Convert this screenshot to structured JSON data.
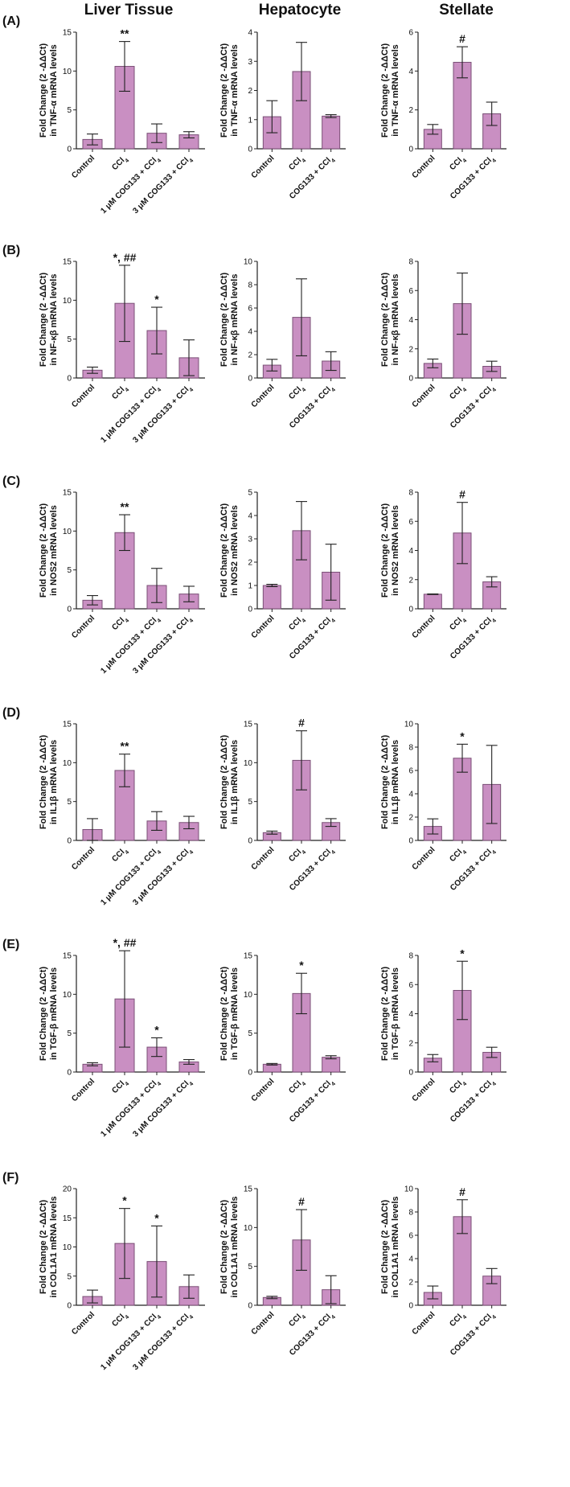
{
  "columns": [
    "Liver Tissue",
    "Hepatocyte",
    "Stellate"
  ],
  "rows": [
    "(A)",
    "(B)",
    "(C)",
    "(D)",
    "(E)",
    "(F)"
  ],
  "colors": {
    "bar": "#c98fc2",
    "bar_edge": "#7a4f76",
    "axis": "#222222"
  },
  "chart_data": [
    {
      "type": "bar",
      "row": 0,
      "col": 0,
      "ylabel": [
        "Fold Change (2 -ΔΔCt)",
        "in TNF-α mRNA levels"
      ],
      "ylim": [
        0,
        15
      ],
      "yticks": [
        0,
        5,
        10,
        15
      ],
      "categories": [
        "Control",
        "CCl4",
        "1 μM COG133 + CCl4",
        "3 μM COG133 + CCl4"
      ],
      "values": [
        1.2,
        10.6,
        2.0,
        1.8
      ],
      "errors": [
        0.7,
        3.2,
        1.2,
        0.4
      ],
      "annotations": [
        "",
        "**",
        "",
        ""
      ]
    },
    {
      "type": "bar",
      "row": 0,
      "col": 1,
      "ylabel": [
        "Fold Change (2 -ΔΔCt)",
        "in TNF-α mRNA levels"
      ],
      "ylim": [
        0,
        4
      ],
      "yticks": [
        0,
        1,
        2,
        3,
        4
      ],
      "categories": [
        "Control",
        "CCl4",
        "COG133 + CCl4"
      ],
      "values": [
        1.1,
        2.65,
        1.12
      ],
      "errors": [
        0.55,
        1.0,
        0.05
      ],
      "annotations": [
        "",
        "",
        ""
      ]
    },
    {
      "type": "bar",
      "row": 0,
      "col": 2,
      "ylabel": [
        "Fold Change (2 -ΔΔCt)",
        "in TNF-α mRNA levels"
      ],
      "ylim": [
        0,
        6
      ],
      "yticks": [
        0,
        2,
        4,
        6
      ],
      "categories": [
        "Control",
        "CCl4",
        "COG133 + CCl4"
      ],
      "values": [
        1.0,
        4.45,
        1.8
      ],
      "errors": [
        0.25,
        0.8,
        0.6
      ],
      "annotations": [
        "",
        "#",
        ""
      ]
    },
    {
      "type": "bar",
      "row": 1,
      "col": 0,
      "ylabel": [
        "Fold Change (2 -ΔΔCt)",
        "in NF-κβ mRNA levels"
      ],
      "ylim": [
        0,
        15
      ],
      "yticks": [
        0,
        5,
        10,
        15
      ],
      "categories": [
        "Control",
        "CCl4",
        "1 μM COG133 + CCl4",
        "3 μM COG133 + CCl4"
      ],
      "values": [
        1.0,
        9.6,
        6.1,
        2.6
      ],
      "errors": [
        0.4,
        4.9,
        3.0,
        2.3
      ],
      "annotations": [
        "",
        "*, ##",
        "*",
        ""
      ]
    },
    {
      "type": "bar",
      "row": 1,
      "col": 1,
      "ylabel": [
        "Fold Change (2 -ΔΔCt)",
        "in NF-κβ mRNA levels"
      ],
      "ylim": [
        0,
        10
      ],
      "yticks": [
        0,
        2,
        4,
        6,
        8,
        10
      ],
      "categories": [
        "Control",
        "CCl4",
        "COG133 + CCl4"
      ],
      "values": [
        1.1,
        5.2,
        1.45
      ],
      "errors": [
        0.5,
        3.3,
        0.8
      ],
      "annotations": [
        "",
        "",
        ""
      ]
    },
    {
      "type": "bar",
      "row": 1,
      "col": 2,
      "ylabel": [
        "Fold Change (2 -ΔΔCt)",
        "in NF-κβ mRNA levels"
      ],
      "ylim": [
        0,
        8
      ],
      "yticks": [
        0,
        2,
        4,
        6,
        8
      ],
      "categories": [
        "Control",
        "CCl4",
        "COG133 + CCl4"
      ],
      "values": [
        1.0,
        5.1,
        0.8
      ],
      "errors": [
        0.3,
        2.1,
        0.35
      ],
      "annotations": [
        "",
        "",
        ""
      ]
    },
    {
      "type": "bar",
      "row": 2,
      "col": 0,
      "ylabel": [
        "Fold Change (2 -ΔΔCt)",
        "in NOS2 mRNA levels"
      ],
      "ylim": [
        0,
        15
      ],
      "yticks": [
        0,
        5,
        10,
        15
      ],
      "categories": [
        "Control",
        "CCl4",
        "1 μM COG133 + CCl4",
        "3 μM COG133 + CCl4"
      ],
      "values": [
        1.1,
        9.8,
        3.0,
        1.9
      ],
      "errors": [
        0.6,
        2.3,
        2.2,
        1.0
      ],
      "annotations": [
        "",
        "**",
        "",
        ""
      ]
    },
    {
      "type": "bar",
      "row": 2,
      "col": 1,
      "ylabel": [
        "Fold Change (2 -ΔΔCt)",
        "in NOS2 mRNA levels"
      ],
      "ylim": [
        0,
        5
      ],
      "yticks": [
        0,
        1,
        2,
        3,
        4,
        5
      ],
      "categories": [
        "Control",
        "CCl4",
        "COG133 + CCl4"
      ],
      "values": [
        1.0,
        3.35,
        1.57
      ],
      "errors": [
        0.05,
        1.25,
        1.2
      ],
      "annotations": [
        "",
        "",
        ""
      ]
    },
    {
      "type": "bar",
      "row": 2,
      "col": 2,
      "ylabel": [
        "Fold Change (2 -ΔΔCt)",
        "in NOS2 mRNA levels"
      ],
      "ylim": [
        0,
        8
      ],
      "yticks": [
        0,
        2,
        4,
        6,
        8
      ],
      "categories": [
        "Control",
        "CCl4",
        "COG133 + CCl4"
      ],
      "values": [
        1.0,
        5.2,
        1.85
      ],
      "errors": [
        0.02,
        2.1,
        0.35
      ],
      "annotations": [
        "",
        "#",
        ""
      ]
    },
    {
      "type": "bar",
      "row": 3,
      "col": 0,
      "ylabel": [
        "Fold Change (2 -ΔΔCt)",
        "in IL1β mRNA levels"
      ],
      "ylim": [
        0,
        15
      ],
      "yticks": [
        0,
        5,
        10,
        15
      ],
      "categories": [
        "Control",
        "CCl4",
        "1 μM COG133 + CCl4",
        "3 μM COG133 + CCl4"
      ],
      "values": [
        1.4,
        9.0,
        2.5,
        2.3
      ],
      "errors": [
        1.4,
        2.1,
        1.2,
        0.8
      ],
      "annotations": [
        "",
        "**",
        "",
        ""
      ]
    },
    {
      "type": "bar",
      "row": 3,
      "col": 1,
      "ylabel": [
        "Fold Change (2 -ΔΔCt)",
        "in IL1β mRNA levels"
      ],
      "ylim": [
        0,
        15
      ],
      "yticks": [
        0,
        5,
        10,
        15
      ],
      "categories": [
        "Control",
        "CCl4",
        "COG133 + CCl4"
      ],
      "values": [
        1.0,
        10.3,
        2.3
      ],
      "errors": [
        0.2,
        3.8,
        0.5
      ],
      "annotations": [
        "",
        "#",
        ""
      ]
    },
    {
      "type": "bar",
      "row": 3,
      "col": 2,
      "ylabel": [
        "Fold Change (2 -ΔΔCt)",
        "in IL1β mRNA levels"
      ],
      "ylim": [
        0,
        10
      ],
      "yticks": [
        0,
        2,
        4,
        6,
        8,
        10
      ],
      "categories": [
        "Control",
        "CCl4",
        "COG133 + CCl4"
      ],
      "values": [
        1.2,
        7.05,
        4.8
      ],
      "errors": [
        0.65,
        1.2,
        3.35
      ],
      "annotations": [
        "",
        "*",
        ""
      ]
    },
    {
      "type": "bar",
      "row": 4,
      "col": 0,
      "ylabel": [
        "Fold Change (2 -ΔΔCt)",
        "in TGF-β mRNA levels"
      ],
      "ylim": [
        0,
        15
      ],
      "yticks": [
        0,
        5,
        10,
        15
      ],
      "categories": [
        "Control",
        "CCl4",
        "1 μM COG133 + CCl4",
        "3 μM COG133 + CCl4"
      ],
      "values": [
        1.0,
        9.4,
        3.2,
        1.3
      ],
      "errors": [
        0.2,
        6.2,
        1.2,
        0.3
      ],
      "annotations": [
        "",
        "*, ##",
        "*",
        ""
      ]
    },
    {
      "type": "bar",
      "row": 4,
      "col": 1,
      "ylabel": [
        "Fold Change (2 -ΔΔCt)",
        "in TGF-β mRNA levels"
      ],
      "ylim": [
        0,
        15
      ],
      "yticks": [
        0,
        5,
        10,
        15
      ],
      "categories": [
        "Control",
        "CCl4",
        "COG133 + CCl4"
      ],
      "values": [
        1.0,
        10.1,
        1.9
      ],
      "errors": [
        0.1,
        2.6,
        0.2
      ],
      "annotations": [
        "",
        "*",
        ""
      ]
    },
    {
      "type": "bar",
      "row": 4,
      "col": 2,
      "ylabel": [
        "Fold Change (2 -ΔΔCt)",
        "in TGF-β mRNA levels"
      ],
      "ylim": [
        0,
        8
      ],
      "yticks": [
        0,
        2,
        4,
        6,
        8
      ],
      "categories": [
        "Control",
        "CCl4",
        "COG133 + CCl4"
      ],
      "values": [
        0.95,
        5.6,
        1.35
      ],
      "errors": [
        0.25,
        2.0,
        0.35
      ],
      "annotations": [
        "",
        "*",
        ""
      ]
    },
    {
      "type": "bar",
      "row": 5,
      "col": 0,
      "ylabel": [
        "Fold Change (2 -ΔΔCt)",
        "in COL1A1 mRNA levels"
      ],
      "ylim": [
        0,
        20
      ],
      "yticks": [
        0,
        5,
        10,
        15,
        20
      ],
      "categories": [
        "Control",
        "CCl4",
        "1 μM COG133 + CCl4",
        "3 μM COG133 + CCl4"
      ],
      "values": [
        1.5,
        10.6,
        7.5,
        3.2
      ],
      "errors": [
        1.1,
        6.0,
        6.1,
        2.0
      ],
      "annotations": [
        "",
        "*",
        "*",
        ""
      ]
    },
    {
      "type": "bar",
      "row": 5,
      "col": 1,
      "ylabel": [
        "Fold Change (2 -ΔΔCt)",
        "in COL1A1 mRNA levels"
      ],
      "ylim": [
        0,
        15
      ],
      "yticks": [
        0,
        5,
        10,
        15
      ],
      "categories": [
        "Control",
        "CCl4",
        "COG133 + CCl4"
      ],
      "values": [
        1.0,
        8.4,
        2.0
      ],
      "errors": [
        0.15,
        3.9,
        1.8
      ],
      "annotations": [
        "",
        "#",
        ""
      ]
    },
    {
      "type": "bar",
      "row": 5,
      "col": 2,
      "ylabel": [
        "Fold Change (2 -ΔΔCt)",
        "in COL1A1 mRNA levels"
      ],
      "ylim": [
        0,
        10
      ],
      "yticks": [
        0,
        2,
        4,
        6,
        8,
        10
      ],
      "categories": [
        "Control",
        "CCl4",
        "COG133 + CCl4"
      ],
      "values": [
        1.1,
        7.6,
        2.5
      ],
      "errors": [
        0.55,
        1.45,
        0.65
      ],
      "annotations": [
        "",
        "#",
        ""
      ]
    }
  ]
}
